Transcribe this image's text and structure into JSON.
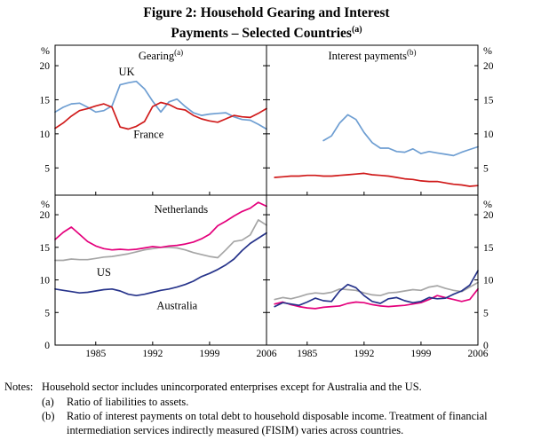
{
  "figure": {
    "title_line1": "Figure 2: Household Gearing and Interest",
    "title_line2": "Payments – Selected Countries",
    "title_sup": "(a)"
  },
  "axes": {
    "percent_symbol": "%",
    "x_tick_labels": [
      "1985",
      "1992",
      "1999",
      "2006"
    ]
  },
  "notes": {
    "label": "Notes:",
    "items": [
      {
        "marker": "",
        "text": "Household sector includes unincorporated enterprises except for Australia and the US."
      },
      {
        "marker": "(a)",
        "text": "Ratio of liabilities to assets."
      },
      {
        "marker": "(b)",
        "text": "Ratio of interest payments on total debt to household disposable income. Treatment of financial intermediation services indirectly measured (FISIM) varies across countries."
      }
    ]
  },
  "chart_data": [
    {
      "id": "gearing-uk-france",
      "type": "line",
      "row": "top",
      "col": "left",
      "title": "Gearing",
      "title_sup": "(a)",
      "ylabel": "%",
      "xlim": [
        1980,
        2006
      ],
      "ylim": [
        1,
        23
      ],
      "xticks": [
        1985,
        1992,
        1999,
        2006
      ],
      "yticks": [
        5,
        10,
        15,
        20
      ],
      "series": [
        {
          "name": "UK",
          "color": "#6e9ed2",
          "x_start": 1980,
          "label": {
            "text": "UK",
            "x": 1988.8,
            "y": 18.6,
            "anchor": "middle"
          },
          "values": [
            13.2,
            13.9,
            14.4,
            14.5,
            13.9,
            13.2,
            13.4,
            14.1,
            17.2,
            17.5,
            17.7,
            16.6,
            14.8,
            13.2,
            14.7,
            15.1,
            14.0,
            13.1,
            12.7,
            12.9,
            13.0,
            13.1,
            12.5,
            12.1,
            12.0,
            11.4,
            10.7
          ]
        },
        {
          "name": "France",
          "color": "#d01a1a",
          "x_start": 1980,
          "label": {
            "text": "France",
            "x": 1991.5,
            "y": 9.4,
            "anchor": "middle"
          },
          "values": [
            10.8,
            11.6,
            12.6,
            13.4,
            13.7,
            14.1,
            14.4,
            13.9,
            11.0,
            10.7,
            11.1,
            11.8,
            14.0,
            14.6,
            14.3,
            13.7,
            13.5,
            12.7,
            12.2,
            11.9,
            11.7,
            12.2,
            12.7,
            12.5,
            12.4,
            13.0,
            13.7
          ]
        }
      ]
    },
    {
      "id": "interest-uk-france",
      "type": "line",
      "row": "top",
      "col": "right",
      "title": "Interest payments",
      "title_sup": "(b)",
      "ylabel": "%",
      "xlim": [
        1980,
        2006
      ],
      "ylim": [
        1,
        23
      ],
      "xticks": [
        1985,
        1992,
        1999,
        2006
      ],
      "yticks": [
        5,
        10,
        15,
        20
      ],
      "series": [
        {
          "name": "UK",
          "color": "#6e9ed2",
          "x_start": 1987,
          "values": [
            9.0,
            9.7,
            11.6,
            12.8,
            12.1,
            10.2,
            8.7,
            7.9,
            7.9,
            7.4,
            7.3,
            7.8,
            7.1,
            7.4,
            7.2,
            7.0,
            6.8,
            7.3,
            7.7,
            8.1
          ]
        },
        {
          "name": "France",
          "color": "#d01a1a",
          "x_start": 1981,
          "values": [
            3.6,
            3.7,
            3.8,
            3.8,
            3.9,
            3.9,
            3.8,
            3.8,
            3.9,
            4.0,
            4.1,
            4.2,
            4.0,
            3.9,
            3.8,
            3.6,
            3.4,
            3.3,
            3.1,
            3.0,
            3.0,
            2.8,
            2.6,
            2.5,
            2.3,
            2.4
          ]
        }
      ]
    },
    {
      "id": "gearing-nl-us-au",
      "type": "line",
      "row": "bottom",
      "col": "left",
      "title": "",
      "title_sup": "",
      "ylabel": "%",
      "xlim": [
        1980,
        2006
      ],
      "ylim": [
        0,
        23
      ],
      "xticks": [
        1985,
        1992,
        1999,
        2006
      ],
      "yticks": [
        0,
        5,
        10,
        15,
        20
      ],
      "series": [
        {
          "name": "US",
          "color": "#a6a6a6",
          "x_start": 1980,
          "label": {
            "text": "US",
            "x": 1986,
            "y": 10.6,
            "anchor": "middle"
          },
          "values": [
            13.0,
            13.0,
            13.2,
            13.1,
            13.1,
            13.3,
            13.5,
            13.6,
            13.8,
            14.0,
            14.3,
            14.6,
            14.8,
            15.0,
            15.0,
            14.9,
            14.6,
            14.2,
            13.9,
            13.6,
            13.4,
            14.6,
            15.9,
            16.1,
            16.9,
            19.2,
            18.4
          ]
        },
        {
          "name": "Netherlands",
          "color": "#e4007c",
          "x_start": 1980,
          "label": {
            "text": "Netherlands",
            "x": 1995.5,
            "y": 20.3,
            "anchor": "middle"
          },
          "values": [
            16.2,
            17.3,
            18.1,
            17.0,
            15.9,
            15.2,
            14.8,
            14.6,
            14.7,
            14.6,
            14.7,
            14.9,
            15.1,
            15.0,
            15.2,
            15.3,
            15.5,
            15.8,
            16.3,
            17.0,
            18.3,
            19.0,
            19.8,
            20.5,
            21.0,
            21.9,
            21.3
          ]
        },
        {
          "name": "Australia",
          "color": "#27348b",
          "x_start": 1980,
          "label": {
            "text": "Australia",
            "x": 1995,
            "y": 5.5,
            "anchor": "middle"
          },
          "values": [
            8.6,
            8.4,
            8.2,
            8.0,
            8.1,
            8.3,
            8.5,
            8.6,
            8.3,
            7.8,
            7.6,
            7.8,
            8.1,
            8.4,
            8.6,
            8.9,
            9.3,
            9.8,
            10.5,
            11.0,
            11.6,
            12.3,
            13.2,
            14.5,
            15.6,
            16.4,
            17.2
          ]
        }
      ]
    },
    {
      "id": "interest-nl-us-au",
      "type": "line",
      "row": "bottom",
      "col": "right",
      "title": "",
      "title_sup": "",
      "ylabel": "%",
      "xlim": [
        1980,
        2006
      ],
      "ylim": [
        0,
        23
      ],
      "xticks": [
        1985,
        1992,
        1999,
        2006
      ],
      "yticks": [
        0,
        5,
        10,
        15,
        20
      ],
      "series": [
        {
          "name": "US",
          "color": "#a6a6a6",
          "x_start": 1981,
          "values": [
            7.0,
            7.3,
            7.1,
            7.4,
            7.8,
            8.0,
            7.9,
            8.1,
            8.6,
            8.5,
            8.4,
            8.0,
            7.7,
            7.6,
            8.0,
            8.1,
            8.3,
            8.5,
            8.4,
            8.9,
            9.1,
            8.7,
            8.4,
            8.2,
            8.9,
            9.6
          ]
        },
        {
          "name": "Netherlands",
          "color": "#e4007c",
          "x_start": 1981,
          "values": [
            6.3,
            6.6,
            6.2,
            5.9,
            5.7,
            5.6,
            5.8,
            5.9,
            6.0,
            6.4,
            6.6,
            6.5,
            6.2,
            6.0,
            5.9,
            6.0,
            6.1,
            6.3,
            6.5,
            7.0,
            7.6,
            7.3,
            7.0,
            6.7,
            7.0,
            8.6
          ]
        },
        {
          "name": "Australia",
          "color": "#27348b",
          "x_start": 1981,
          "values": [
            5.9,
            6.5,
            6.3,
            6.1,
            6.6,
            7.2,
            6.8,
            6.7,
            8.3,
            9.3,
            8.8,
            7.6,
            6.7,
            6.4,
            7.1,
            7.3,
            6.8,
            6.5,
            6.7,
            7.3,
            7.1,
            7.2,
            7.8,
            8.3,
            9.2,
            11.4
          ]
        }
      ]
    }
  ]
}
